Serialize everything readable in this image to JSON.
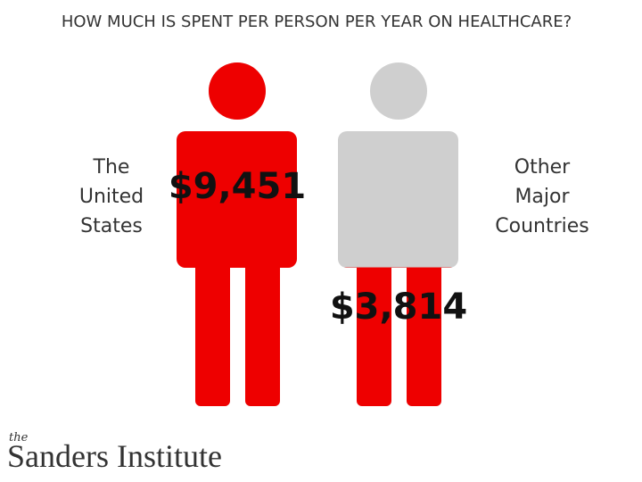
{
  "chart_data": {
    "type": "pictograph",
    "title": "HOW MUCH IS SPENT PER PERSON PER YEAR ON HEALTHCARE?",
    "categories": [
      "The United States",
      "Other Major Countries"
    ],
    "values": [
      9451,
      3814
    ],
    "value_labels": [
      "$9,451",
      "$3,814"
    ],
    "color": "#ee0000",
    "empty_color": "#cfcfcf"
  },
  "logo": {
    "prefix": "the",
    "name": "Sanders Institute"
  }
}
